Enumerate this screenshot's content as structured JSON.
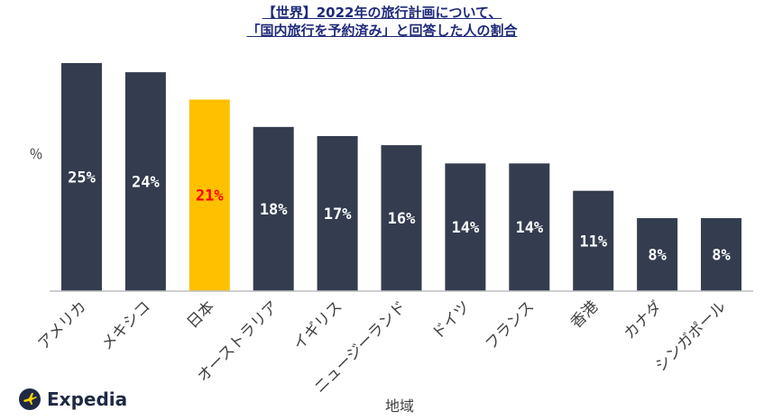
{
  "title": {
    "line1": "【世界】2022年の旅行計画について、",
    "line2": "「国内旅行を予約済み」と回答した人の割合"
  },
  "brand": {
    "name": "Expedia",
    "icon": "airplane-logo-icon"
  },
  "colors": {
    "bar": "#333d4f",
    "highlight_bar": "#ffc000",
    "label": "#ffffff",
    "highlight_label": "#ff0000",
    "axis": "#bfbfbf",
    "text": "#404040"
  },
  "chart_data": {
    "type": "bar",
    "xlabel": "地域",
    "ylabel": "％",
    "categories": [
      "アメリカ",
      "メキシコ",
      "日本",
      "オーストラリア",
      "イギリス",
      "ニュージーランド",
      "ドイツ",
      "フランス",
      "香港",
      "カナダ",
      "シンガポール"
    ],
    "values": [
      25,
      24,
      21,
      18,
      17,
      16,
      14,
      14,
      11,
      8,
      8
    ],
    "data_labels": [
      "25%",
      "24%",
      "21%",
      "18%",
      "17%",
      "16%",
      "14%",
      "14%",
      "11%",
      "8%",
      "8%"
    ],
    "highlight_category": "日本",
    "ylim": [
      0,
      25
    ],
    "grid": false,
    "legend": "none"
  }
}
